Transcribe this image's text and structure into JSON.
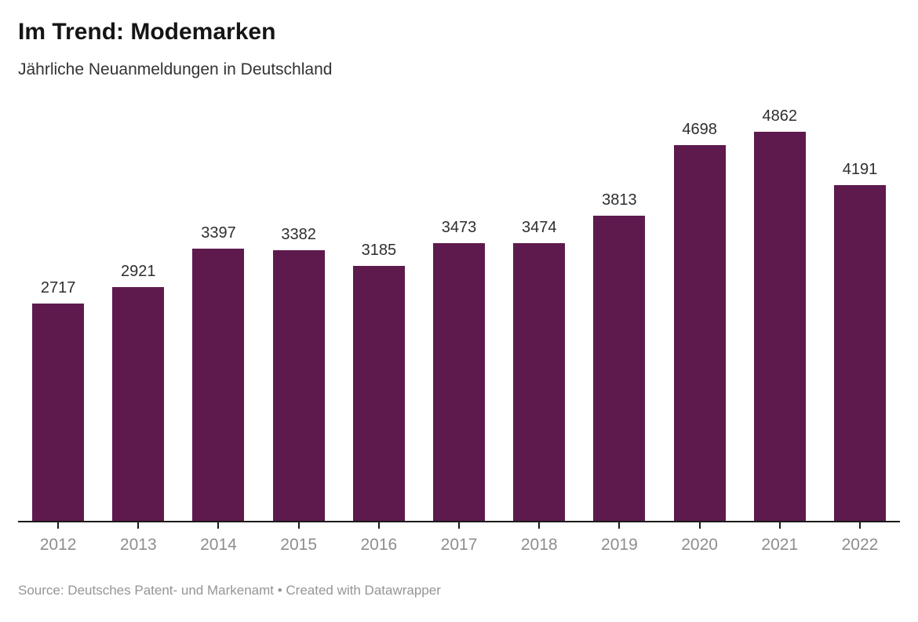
{
  "header": {
    "title": "Im Trend: Modemarken",
    "subtitle": "Jährliche Neuanmeldungen in Deutschland"
  },
  "footer": {
    "source_line": "Source: Deutsches Patent- und Markenamt • Created with Datawrapper"
  },
  "colors": {
    "bar": "#5e1a4d",
    "axis": "#1a1a1a",
    "value_label": "#2e2e2e",
    "tick_label": "#8e8e8e",
    "footer_text": "#959595"
  },
  "chart_data": {
    "type": "bar",
    "categories": [
      "2012",
      "2013",
      "2014",
      "2015",
      "2016",
      "2017",
      "2018",
      "2019",
      "2020",
      "2021",
      "2022"
    ],
    "values": [
      2717,
      2921,
      3397,
      3382,
      3185,
      3473,
      3474,
      3813,
      4698,
      4862,
      4191
    ],
    "title": "Im Trend: Modemarken",
    "subtitle": "Jährliche Neuanmeldungen in Deutschland",
    "xlabel": "",
    "ylabel": "",
    "ylim": [
      0,
      4862
    ],
    "grid": false,
    "legend": false,
    "value_labels": true,
    "bar_color": "#5e1a4d"
  }
}
